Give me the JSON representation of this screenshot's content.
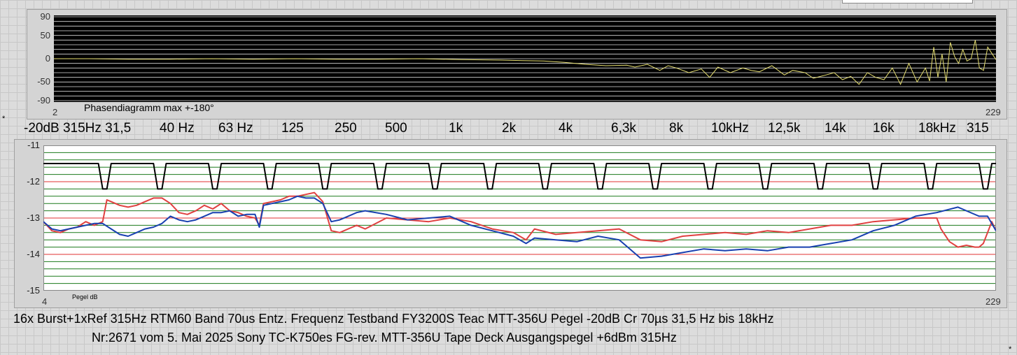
{
  "phase_chart": {
    "caption": "Phasendiagramm max +-180°",
    "y_ticks": [
      "90",
      "50",
      "0",
      "-50",
      "-90"
    ],
    "x_start": "2",
    "x_end": "229"
  },
  "freq_labels": [
    "-20dB 315Hz 31,5",
    "40 Hz",
    "63 Hz",
    "125",
    "250",
    "500",
    "1k",
    "2k",
    "4k",
    "6,3k",
    "8k",
    "10kHz",
    "12,5k",
    "14k",
    "16k",
    "18kHz",
    "315"
  ],
  "level_chart": {
    "y_ticks": [
      "-11",
      "-12",
      "-13",
      "-14",
      "-15"
    ],
    "ylabel": "Pegel dB",
    "x_start": "4",
    "x_end": "229"
  },
  "footer": {
    "line1": "16x Burst+1xRef 315Hz RTM60 Band 70us Entz. Frequenz Testband FY3200S Teac MTT-356U Pegel -20dB Cr 70µs 31,5 Hz bis 18kHz",
    "line2": "Nr:2671 vom 5. Mai 2025 Sony TC-K750es FG-rev. MTT-356U Tape Deck Ausgangspegel +6dBm 315Hz"
  },
  "chart_data": [
    {
      "type": "line",
      "title": "Phasendiagramm max +-180°",
      "ylim": [
        -90,
        90
      ],
      "xlim": [
        2,
        229
      ],
      "y_ticks": [
        90,
        50,
        0,
        -50,
        -90
      ],
      "colors": {
        "background": "#000000",
        "grid": "#ffffff",
        "trace": "#e8e070"
      },
      "series": [
        {
          "x": [
            2,
            10,
            20,
            30,
            40,
            50,
            60,
            70,
            80,
            90,
            100,
            110,
            115,
            120,
            125,
            130,
            135,
            140,
            142,
            145,
            148,
            150,
            152,
            155,
            158,
            160,
            162,
            165,
            168,
            170,
            172,
            175,
            178,
            180,
            183,
            185,
            188,
            190,
            192,
            194,
            196,
            198,
            200,
            202,
            204,
            206,
            208,
            210,
            212,
            213,
            214,
            215,
            216,
            217,
            218,
            219,
            220,
            221,
            222,
            223,
            224,
            225,
            226,
            227,
            229
          ],
          "y": [
            0,
            0,
            -1,
            -1,
            0,
            -1,
            0,
            -1,
            -1,
            0,
            -2,
            -3,
            -4,
            -5,
            -8,
            -12,
            -15,
            -14,
            -18,
            -12,
            -25,
            -15,
            -20,
            -30,
            -22,
            -40,
            -18,
            -30,
            -20,
            -25,
            -28,
            -15,
            -35,
            -25,
            -30,
            -42,
            -35,
            -30,
            -45,
            -38,
            -55,
            -30,
            -40,
            -45,
            -20,
            -55,
            -10,
            -50,
            -20,
            -48,
            25,
            -40,
            10,
            -50,
            35,
            5,
            -10,
            20,
            -5,
            0,
            40,
            -20,
            -25,
            25,
            -2
          ]
        }
      ]
    },
    {
      "type": "line",
      "ylabel": "Pegel dB",
      "ylim": [
        -15,
        -11
      ],
      "xlim": [
        4,
        229
      ],
      "y_ticks": [
        -11,
        -12,
        -13,
        -14,
        -15
      ],
      "grid": true,
      "colors": {
        "background": "#ffffff",
        "grid": "#1a7a1a",
        "ref_lines": "#e03030"
      },
      "ref_lines": [
        -12,
        -13,
        -14
      ],
      "series": [
        {
          "color": "#000000",
          "x": [
            4,
            17,
            18,
            19,
            20,
            30,
            31,
            32,
            33,
            43,
            44,
            45,
            46,
            56,
            57,
            58,
            59,
            69,
            70,
            71,
            72,
            82,
            83,
            84,
            85,
            95,
            96,
            97,
            98,
            108,
            109,
            110,
            111,
            121,
            122,
            123,
            124,
            134,
            135,
            136,
            137,
            147,
            148,
            149,
            150,
            160,
            161,
            162,
            163,
            173,
            174,
            175,
            176,
            186,
            187,
            188,
            189,
            199,
            200,
            201,
            202,
            212,
            213,
            214,
            215,
            225,
            226,
            227,
            228,
            229
          ],
          "y": [
            -11.5,
            -11.5,
            -12.2,
            -12.2,
            -11.5,
            -11.5,
            -12.2,
            -12.2,
            -11.5,
            -11.5,
            -12.2,
            -12.2,
            -11.5,
            -11.5,
            -12.2,
            -12.2,
            -11.5,
            -11.5,
            -12.2,
            -12.2,
            -11.5,
            -11.5,
            -12.2,
            -12.2,
            -11.5,
            -11.5,
            -12.2,
            -12.2,
            -11.5,
            -11.5,
            -12.2,
            -12.2,
            -11.5,
            -11.5,
            -12.2,
            -12.2,
            -11.5,
            -11.5,
            -12.2,
            -12.2,
            -11.5,
            -11.5,
            -12.2,
            -12.2,
            -11.5,
            -11.5,
            -12.2,
            -12.2,
            -11.5,
            -11.5,
            -12.2,
            -12.2,
            -11.5,
            -11.5,
            -12.2,
            -12.2,
            -11.5,
            -11.5,
            -12.2,
            -12.2,
            -11.5,
            -11.5,
            -12.2,
            -12.2,
            -11.5,
            -11.5,
            -12.2,
            -12.2,
            -11.5,
            -11.5
          ]
        },
        {
          "color": "#e04040",
          "x": [
            4,
            6,
            8,
            10,
            12,
            14,
            16,
            18,
            19,
            20,
            22,
            24,
            26,
            28,
            30,
            32,
            34,
            36,
            38,
            40,
            42,
            44,
            46,
            48,
            50,
            52,
            54,
            55,
            56,
            58,
            60,
            62,
            64,
            66,
            68,
            70,
            72,
            74,
            76,
            78,
            80,
            85,
            90,
            95,
            100,
            105,
            110,
            115,
            118,
            120,
            125,
            130,
            135,
            140,
            145,
            150,
            155,
            160,
            165,
            170,
            175,
            180,
            185,
            190,
            195,
            200,
            205,
            210,
            215,
            216,
            218,
            220,
            222,
            224,
            225,
            226,
            228,
            229
          ],
          "y": [
            -13.1,
            -13.35,
            -13.4,
            -13.3,
            -13.25,
            -13.1,
            -13.2,
            -13.1,
            -12.5,
            -12.55,
            -12.65,
            -12.7,
            -12.65,
            -12.55,
            -12.45,
            -12.45,
            -12.6,
            -12.85,
            -12.9,
            -12.8,
            -12.65,
            -12.75,
            -12.6,
            -12.8,
            -12.85,
            -12.95,
            -13.0,
            -13.2,
            -12.6,
            -12.55,
            -12.5,
            -12.4,
            -12.4,
            -12.35,
            -12.3,
            -12.55,
            -13.35,
            -13.4,
            -13.3,
            -13.2,
            -13.3,
            -13.0,
            -13.05,
            -13.1,
            -13.0,
            -13.1,
            -13.3,
            -13.4,
            -13.6,
            -13.3,
            -13.45,
            -13.4,
            -13.35,
            -13.3,
            -13.6,
            -13.65,
            -13.5,
            -13.45,
            -13.4,
            -13.45,
            -13.35,
            -13.4,
            -13.3,
            -13.2,
            -13.2,
            -13.1,
            -13.05,
            -13.0,
            -13.0,
            -13.3,
            -13.65,
            -13.8,
            -13.75,
            -13.8,
            -13.8,
            -13.7,
            -13.1,
            -13.35
          ]
        },
        {
          "color": "#1840b0",
          "x": [
            4,
            6,
            8,
            10,
            12,
            14,
            16,
            18,
            20,
            22,
            24,
            26,
            28,
            30,
            32,
            34,
            36,
            38,
            40,
            42,
            44,
            46,
            48,
            50,
            52,
            54,
            55,
            56,
            58,
            60,
            62,
            64,
            66,
            68,
            70,
            72,
            74,
            76,
            78,
            80,
            85,
            90,
            95,
            100,
            105,
            110,
            115,
            118,
            120,
            125,
            130,
            135,
            140,
            145,
            150,
            155,
            160,
            165,
            170,
            175,
            180,
            185,
            190,
            195,
            200,
            205,
            210,
            215,
            220,
            225,
            227,
            229
          ],
          "y": [
            -13.1,
            -13.3,
            -13.35,
            -13.3,
            -13.25,
            -13.2,
            -13.15,
            -13.15,
            -13.3,
            -13.45,
            -13.5,
            -13.4,
            -13.3,
            -13.25,
            -13.15,
            -12.95,
            -13.05,
            -13.1,
            -13.05,
            -12.95,
            -12.85,
            -12.85,
            -12.8,
            -12.95,
            -12.9,
            -12.9,
            -13.25,
            -12.65,
            -12.6,
            -12.55,
            -12.5,
            -12.4,
            -12.45,
            -12.45,
            -12.6,
            -13.1,
            -13.05,
            -12.95,
            -12.85,
            -12.8,
            -12.9,
            -13.05,
            -13.0,
            -12.95,
            -13.2,
            -13.35,
            -13.5,
            -13.7,
            -13.55,
            -13.6,
            -13.65,
            -13.5,
            -13.6,
            -14.1,
            -14.05,
            -13.95,
            -13.85,
            -13.9,
            -13.85,
            -13.9,
            -13.8,
            -13.8,
            -13.7,
            -13.6,
            -13.35,
            -13.2,
            -12.95,
            -12.85,
            -12.7,
            -12.95,
            -12.95,
            -13.35
          ]
        }
      ]
    }
  ]
}
